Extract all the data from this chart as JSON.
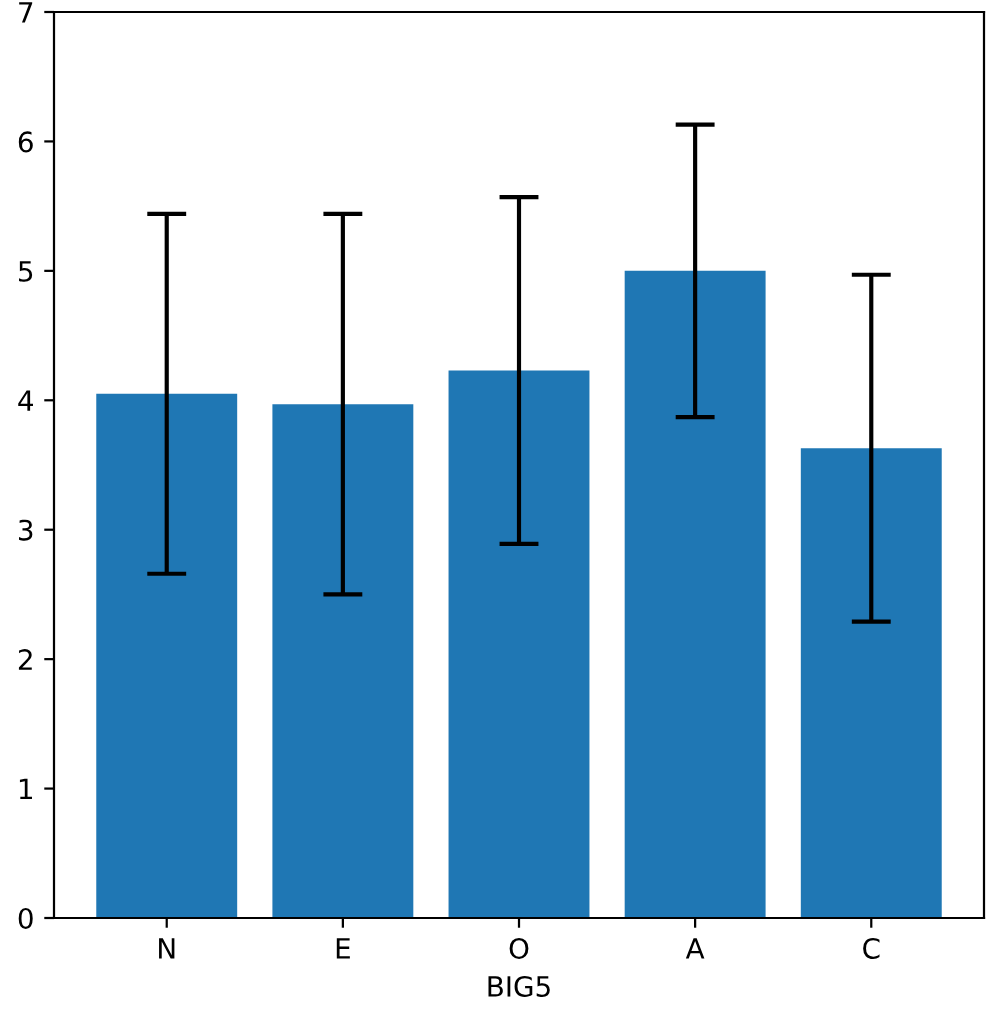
{
  "chart_data": {
    "type": "bar",
    "xlabel": "BIG5",
    "categories": [
      "N",
      "E",
      "O",
      "A",
      "C"
    ],
    "values": [
      4.05,
      3.97,
      4.23,
      5.0,
      3.63
    ],
    "errors": [
      1.39,
      1.47,
      1.34,
      1.13,
      1.34
    ],
    "color": "#1f77b4",
    "ylim": [
      0,
      7
    ],
    "yticks": [
      0,
      1,
      2,
      3,
      4,
      5,
      6,
      7
    ],
    "grid": false
  }
}
